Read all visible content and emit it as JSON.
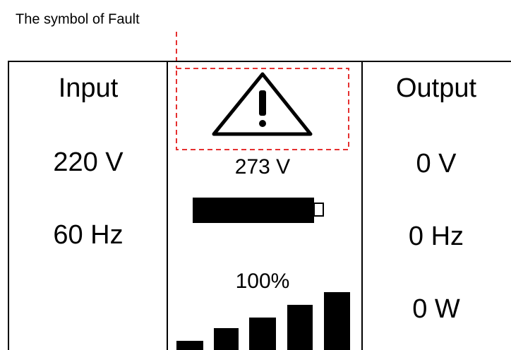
{
  "annotation": "The symbol of Fault",
  "input": {
    "title": "Input",
    "voltage": "220 V",
    "frequency": "60 Hz"
  },
  "center": {
    "battery_voltage": "273 V",
    "load": "100%"
  },
  "output": {
    "title": "Output",
    "voltage": "0 V",
    "frequency": "0 Hz",
    "power": "0 W"
  }
}
